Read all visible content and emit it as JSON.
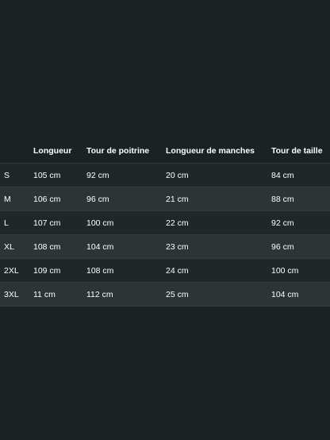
{
  "colors": {
    "background": "#1b2224",
    "row_dark": "#1f2729",
    "row_light": "#2b3436",
    "text": "#ffffff"
  },
  "table": {
    "headers": [
      "",
      "Longueur",
      "Tour de poitrine",
      "Longueur de manches",
      "Tour de taille"
    ],
    "rows": [
      [
        "S",
        "105 cm",
        "92 cm",
        "20 cm",
        "84 cm"
      ],
      [
        "M",
        "106 cm",
        "96 cm",
        "21 cm",
        "88 cm"
      ],
      [
        "L",
        "107 cm",
        "100 cm",
        "22 cm",
        "92 cm"
      ],
      [
        "XL",
        "108 cm",
        "104 cm",
        "23 cm",
        "96 cm"
      ],
      [
        "2XL",
        "109 cm",
        "108 cm",
        "24 cm",
        "100 cm"
      ],
      [
        "3XL",
        "11 cm",
        "112 cm",
        "25 cm",
        "104 cm"
      ]
    ]
  }
}
